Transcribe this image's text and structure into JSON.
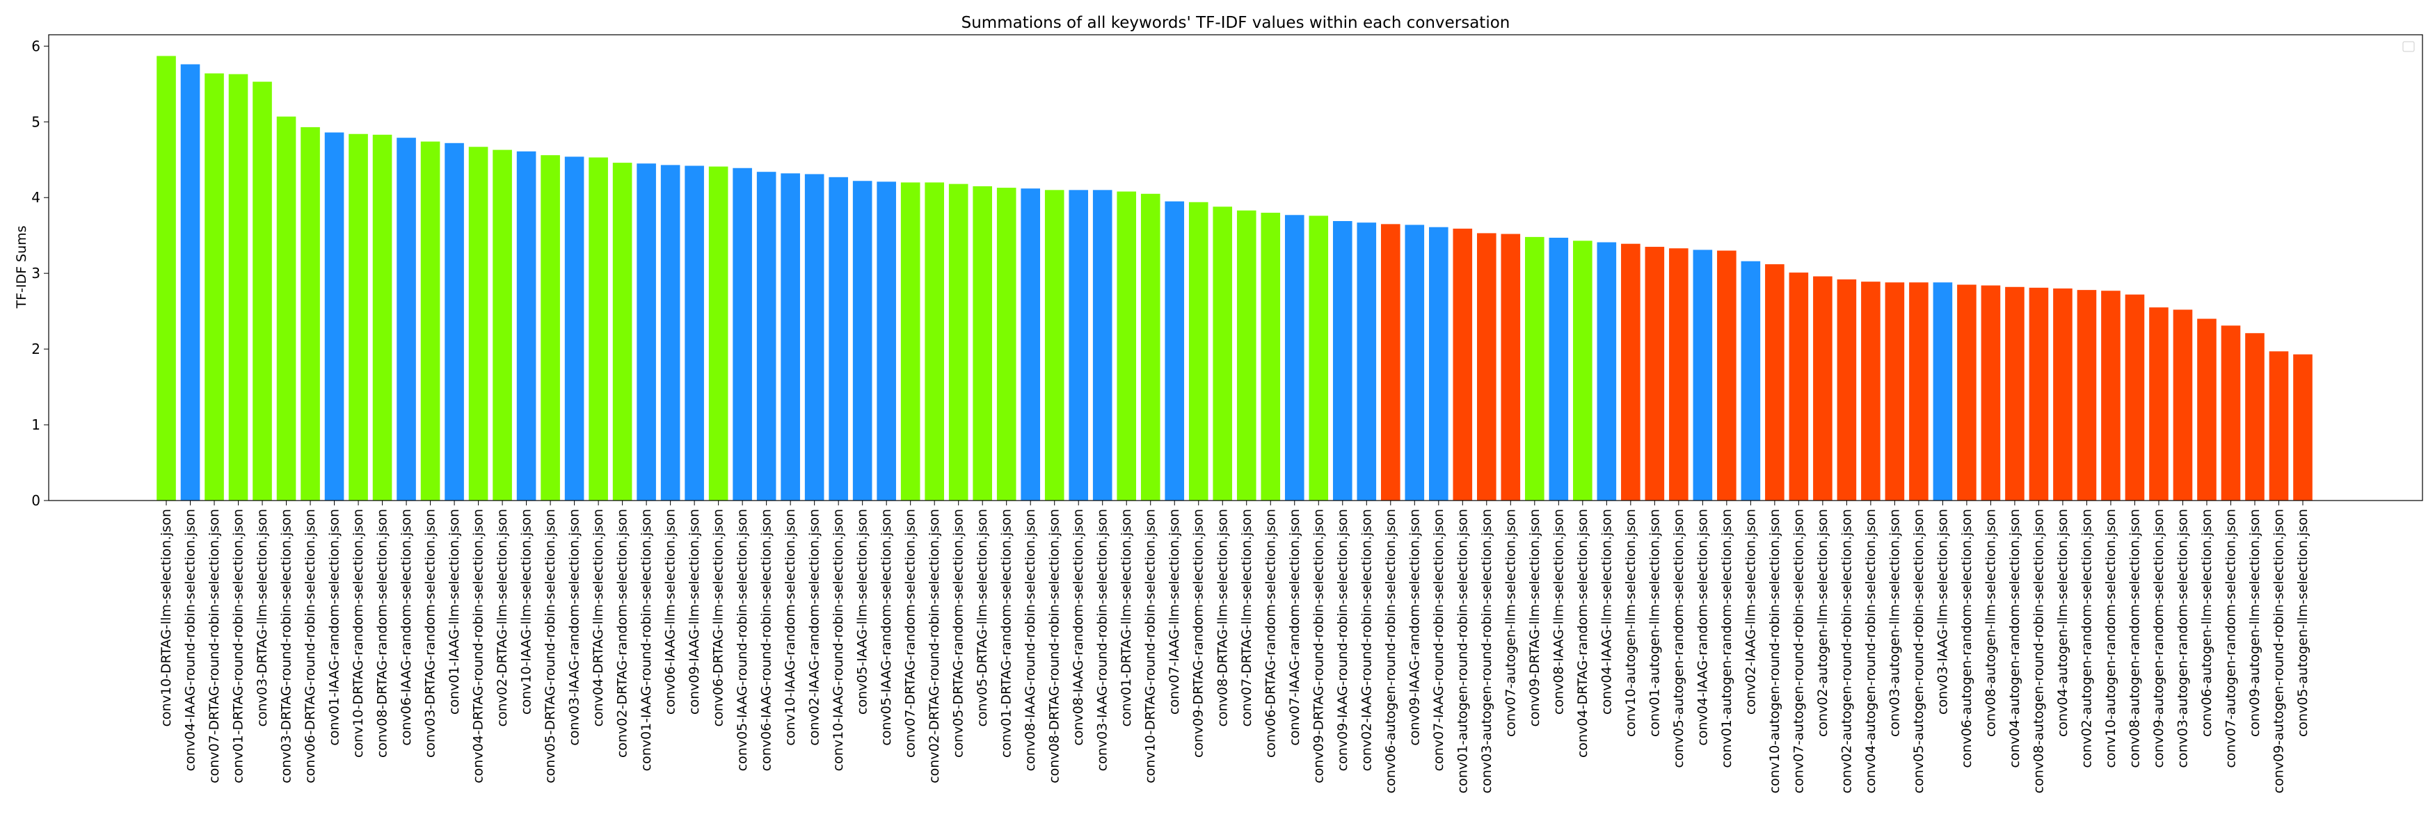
{
  "chart_data": {
    "type": "bar",
    "title": "Summations of all keywords' TF-IDF values within each conversation",
    "xlabel": "",
    "ylabel": "TF-IDF Sums",
    "ylim": [
      0,
      6.15
    ],
    "yticks": [
      0,
      1,
      2,
      3,
      4,
      5,
      6
    ],
    "grid": false,
    "legend": {
      "placement": "top-right",
      "entries": []
    },
    "colors": {
      "DRTAG": "#7cfc00",
      "IAAG": "#1e90ff",
      "autogen": "#ff4500"
    },
    "categories": [
      "conv10-DRTAG-llm-selection.json",
      "conv04-IAAG-round-robin-selection.json",
      "conv07-DRTAG-round-robin-selection.json",
      "conv01-DRTAG-round-robin-selection.json",
      "conv03-DRTAG-llm-selection.json",
      "conv03-DRTAG-round-robin-selection.json",
      "conv06-DRTAG-round-robin-selection.json",
      "conv01-IAAG-random-selection.json",
      "conv10-DRTAG-random-selection.json",
      "conv08-DRTAG-random-selection.json",
      "conv06-IAAG-random-selection.json",
      "conv03-DRTAG-random-selection.json",
      "conv01-IAAG-llm-selection.json",
      "conv04-DRTAG-round-robin-selection.json",
      "conv02-DRTAG-llm-selection.json",
      "conv10-IAAG-llm-selection.json",
      "conv05-DRTAG-round-robin-selection.json",
      "conv03-IAAG-random-selection.json",
      "conv04-DRTAG-llm-selection.json",
      "conv02-DRTAG-random-selection.json",
      "conv01-IAAG-round-robin-selection.json",
      "conv06-IAAG-llm-selection.json",
      "conv09-IAAG-llm-selection.json",
      "conv06-DRTAG-llm-selection.json",
      "conv05-IAAG-round-robin-selection.json",
      "conv06-IAAG-round-robin-selection.json",
      "conv10-IAAG-random-selection.json",
      "conv02-IAAG-random-selection.json",
      "conv10-IAAG-round-robin-selection.json",
      "conv05-IAAG-llm-selection.json",
      "conv05-IAAG-random-selection.json",
      "conv07-DRTAG-random-selection.json",
      "conv02-DRTAG-round-robin-selection.json",
      "conv05-DRTAG-random-selection.json",
      "conv05-DRTAG-llm-selection.json",
      "conv01-DRTAG-random-selection.json",
      "conv08-IAAG-round-robin-selection.json",
      "conv08-DRTAG-round-robin-selection.json",
      "conv08-IAAG-random-selection.json",
      "conv03-IAAG-round-robin-selection.json",
      "conv01-DRTAG-llm-selection.json",
      "conv10-DRTAG-round-robin-selection.json",
      "conv07-IAAG-llm-selection.json",
      "conv09-DRTAG-random-selection.json",
      "conv08-DRTAG-llm-selection.json",
      "conv07-DRTAG-llm-selection.json",
      "conv06-DRTAG-random-selection.json",
      "conv07-IAAG-random-selection.json",
      "conv09-DRTAG-round-robin-selection.json",
      "conv09-IAAG-round-robin-selection.json",
      "conv02-IAAG-round-robin-selection.json",
      "conv06-autogen-round-robin-selection.json",
      "conv09-IAAG-random-selection.json",
      "conv07-IAAG-round-robin-selection.json",
      "conv01-autogen-round-robin-selection.json",
      "conv03-autogen-round-robin-selection.json",
      "conv07-autogen-llm-selection.json",
      "conv09-DRTAG-llm-selection.json",
      "conv08-IAAG-llm-selection.json",
      "conv04-DRTAG-random-selection.json",
      "conv04-IAAG-llm-selection.json",
      "conv10-autogen-llm-selection.json",
      "conv01-autogen-llm-selection.json",
      "conv05-autogen-random-selection.json",
      "conv04-IAAG-random-selection.json",
      "conv01-autogen-random-selection.json",
      "conv02-IAAG-llm-selection.json",
      "conv10-autogen-round-robin-selection.json",
      "conv07-autogen-round-robin-selection.json",
      "conv02-autogen-llm-selection.json",
      "conv02-autogen-round-robin-selection.json",
      "conv04-autogen-round-robin-selection.json",
      "conv03-autogen-llm-selection.json",
      "conv05-autogen-round-robin-selection.json",
      "conv03-IAAG-llm-selection.json",
      "conv06-autogen-random-selection.json",
      "conv08-autogen-llm-selection.json",
      "conv04-autogen-random-selection.json",
      "conv08-autogen-round-robin-selection.json",
      "conv04-autogen-llm-selection.json",
      "conv02-autogen-random-selection.json",
      "conv10-autogen-random-selection.json",
      "conv08-autogen-random-selection.json",
      "conv09-autogen-random-selection.json",
      "conv03-autogen-random-selection.json",
      "conv06-autogen-llm-selection.json",
      "conv07-autogen-random-selection.json",
      "conv09-autogen-llm-selection.json",
      "conv09-autogen-round-robin-selection.json",
      "conv05-autogen-llm-selection.json"
    ],
    "values": [
      5.87,
      5.76,
      5.64,
      5.63,
      5.53,
      5.07,
      4.93,
      4.86,
      4.84,
      4.83,
      4.79,
      4.74,
      4.72,
      4.67,
      4.63,
      4.61,
      4.56,
      4.54,
      4.53,
      4.46,
      4.45,
      4.43,
      4.42,
      4.41,
      4.39,
      4.34,
      4.32,
      4.31,
      4.27,
      4.22,
      4.21,
      4.2,
      4.2,
      4.18,
      4.15,
      4.13,
      4.12,
      4.1,
      4.1,
      4.1,
      4.08,
      4.05,
      3.95,
      3.94,
      3.88,
      3.83,
      3.8,
      3.77,
      3.76,
      3.69,
      3.67,
      3.65,
      3.64,
      3.61,
      3.59,
      3.53,
      3.52,
      3.48,
      3.47,
      3.43,
      3.41,
      3.39,
      3.35,
      3.33,
      3.31,
      3.3,
      3.16,
      3.12,
      3.01,
      2.96,
      2.92,
      2.89,
      2.88,
      2.88,
      2.88,
      2.85,
      2.84,
      2.82,
      2.81,
      2.8,
      2.78,
      2.77,
      2.72,
      2.55,
      2.52,
      2.4,
      2.31,
      2.21,
      1.97,
      1.93
    ]
  }
}
